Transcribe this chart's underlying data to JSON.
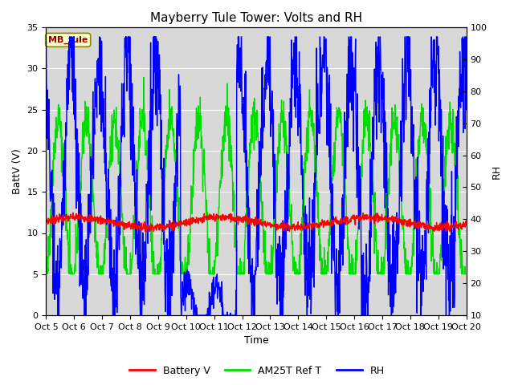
{
  "title": "Mayberry Tule Tower: Volts and RH",
  "xlabel": "Time",
  "ylabel_left": "BattV (V)",
  "ylabel_right": "RH",
  "ylim_left": [
    0,
    35
  ],
  "ylim_right": [
    10,
    100
  ],
  "yticks_left": [
    0,
    5,
    10,
    15,
    20,
    25,
    30,
    35
  ],
  "yticks_right": [
    10,
    20,
    30,
    40,
    50,
    60,
    70,
    80,
    90,
    100
  ],
  "x_labels": [
    "Oct 5",
    "Oct 6",
    "Oct 7",
    "Oct 8",
    "Oct 9",
    "Oct 10",
    "Oct 11",
    "Oct 12",
    "Oct 13",
    "Oct 14",
    "Oct 15",
    "Oct 16",
    "Oct 17",
    "Oct 18",
    "Oct 19",
    "Oct 20"
  ],
  "station_label": "MB_tule",
  "legend_items": [
    "Battery V",
    "AM25T Ref T",
    "RH"
  ],
  "legend_colors": [
    "#ff0000",
    "#00dd00",
    "#0000ff"
  ],
  "bg_color": "#ffffff",
  "plot_bg_color": "#d8d8d8",
  "grid_color": "#ffffff",
  "title_fontsize": 11,
  "axis_fontsize": 9,
  "tick_fontsize": 8
}
